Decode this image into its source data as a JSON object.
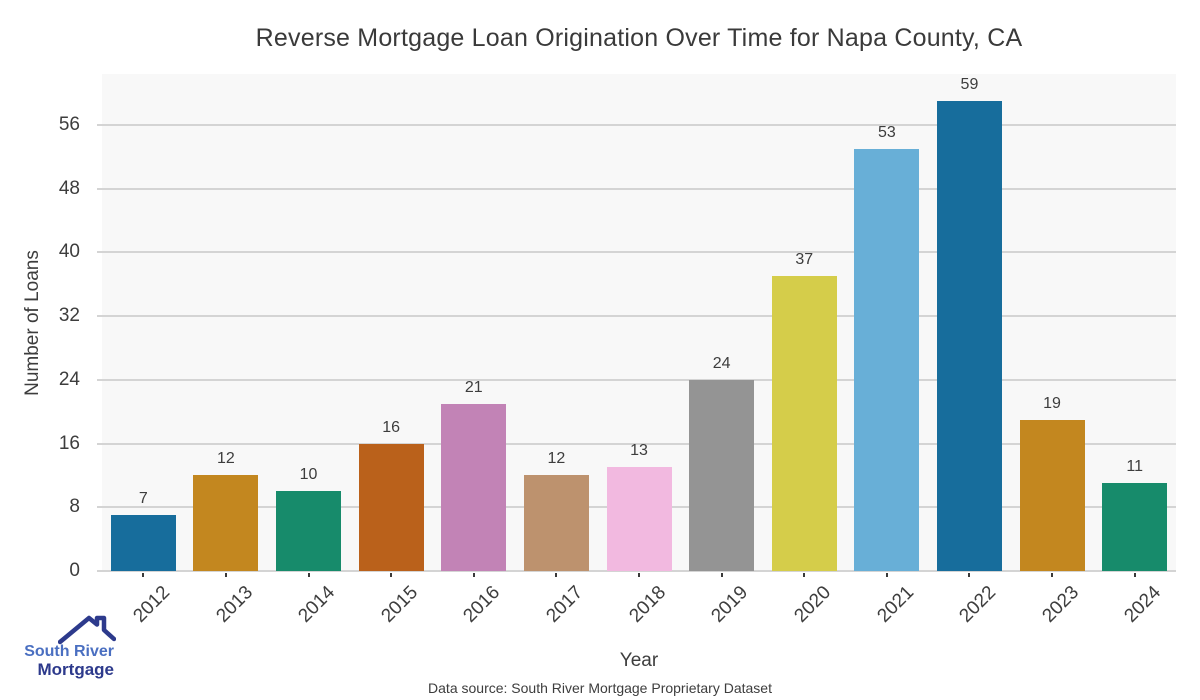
{
  "chart_data": {
    "type": "bar",
    "title": "Reverse Mortgage Loan Origination Over Time for Napa County, CA",
    "xlabel": "Year",
    "ylabel": "Number of Loans",
    "categories": [
      "2012",
      "2013",
      "2014",
      "2015",
      "2016",
      "2017",
      "2018",
      "2019",
      "2020",
      "2021",
      "2022",
      "2023",
      "2024"
    ],
    "values": [
      7,
      12,
      10,
      16,
      21,
      12,
      13,
      24,
      37,
      53,
      59,
      19,
      11
    ],
    "bar_colors": [
      "#176d9c",
      "#c3871f",
      "#178b6b",
      "#ba611b",
      "#c283b6",
      "#bd926e",
      "#f2b9e0",
      "#949494",
      "#d5cd4a",
      "#68afd7",
      "#176d9c",
      "#c3871f",
      "#178b6b"
    ],
    "yticks": [
      0,
      8,
      16,
      24,
      32,
      40,
      48,
      56
    ],
    "ylim": [
      0,
      62.4
    ],
    "grid": true,
    "legend_position": "none",
    "plot_bg_color": "#f8f8f8",
    "gridline_color": "#d4d4d4"
  },
  "footer": {
    "data_source": "Data source: South River Mortgage Proprietary Dataset"
  },
  "logo": {
    "line1": "South River",
    "line2": "Mortgage",
    "line1_color": "#4a6fc1",
    "line2_color": "#2d3a8c",
    "roof_color": "#2d3a8c"
  }
}
